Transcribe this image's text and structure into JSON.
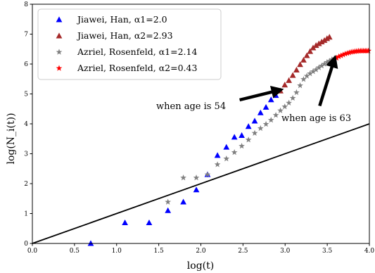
{
  "chart_data": {
    "type": "scatter",
    "xlabel": "log(t)",
    "ylabel": "log(N_i(t))",
    "xlim": [
      0.0,
      4.0
    ],
    "ylim": [
      0,
      8
    ],
    "xticks": [
      "0.0",
      "0.5",
      "1.0",
      "1.5",
      "2.0",
      "2.5",
      "3.0",
      "3.5",
      "4.0"
    ],
    "yticks": [
      "0",
      "1",
      "2",
      "3",
      "4",
      "5",
      "6",
      "7",
      "8"
    ],
    "legend_position": "top-left",
    "grid": false,
    "series": [
      {
        "name": "Jiawei, Han, α1=2.0",
        "marker": "triangle",
        "color": "#0000ff",
        "points": [
          [
            0.693,
            0.0
          ],
          [
            1.099,
            0.693
          ],
          [
            1.386,
            0.693
          ],
          [
            1.609,
            1.099
          ],
          [
            1.792,
            1.386
          ],
          [
            1.946,
            1.792
          ],
          [
            2.079,
            2.303
          ],
          [
            2.197,
            2.944
          ],
          [
            2.303,
            3.219
          ],
          [
            2.398,
            3.555
          ],
          [
            2.485,
            3.611
          ],
          [
            2.565,
            3.912
          ],
          [
            2.639,
            4.094
          ],
          [
            2.708,
            4.369
          ],
          [
            2.773,
            4.554
          ],
          [
            2.833,
            4.804
          ],
          [
            2.89,
            4.95
          ]
        ]
      },
      {
        "name": "Jiawei, Han, α2=2.93",
        "marker": "triangle",
        "color": "#a52a2a",
        "points": [
          [
            2.944,
            5.1
          ],
          [
            2.996,
            5.3
          ],
          [
            3.045,
            5.45
          ],
          [
            3.091,
            5.62
          ],
          [
            3.135,
            5.8
          ],
          [
            3.178,
            5.98
          ],
          [
            3.219,
            6.13
          ],
          [
            3.258,
            6.28
          ],
          [
            3.296,
            6.42
          ],
          [
            3.332,
            6.54
          ],
          [
            3.367,
            6.62
          ],
          [
            3.401,
            6.68
          ],
          [
            3.434,
            6.74
          ],
          [
            3.466,
            6.79
          ],
          [
            3.497,
            6.85
          ],
          [
            3.526,
            6.9
          ]
        ]
      },
      {
        "name": "Azriel, Rosenfeld, α1=2.14",
        "marker": "star",
        "color": "#808080",
        "points": [
          [
            1.609,
            1.386
          ],
          [
            1.792,
            2.197
          ],
          [
            1.946,
            2.197
          ],
          [
            2.079,
            2.303
          ],
          [
            2.197,
            2.639
          ],
          [
            2.303,
            2.833
          ],
          [
            2.398,
            3.045
          ],
          [
            2.485,
            3.258
          ],
          [
            2.565,
            3.466
          ],
          [
            2.639,
            3.689
          ],
          [
            2.708,
            3.85
          ],
          [
            2.773,
            3.989
          ],
          [
            2.833,
            4.127
          ],
          [
            2.89,
            4.29
          ],
          [
            2.944,
            4.443
          ],
          [
            2.996,
            4.575
          ],
          [
            3.045,
            4.7
          ],
          [
            3.091,
            4.86
          ],
          [
            3.135,
            5.05
          ],
          [
            3.178,
            5.28
          ],
          [
            3.219,
            5.49
          ],
          [
            3.258,
            5.6
          ],
          [
            3.296,
            5.68
          ],
          [
            3.332,
            5.75
          ],
          [
            3.367,
            5.81
          ],
          [
            3.401,
            5.88
          ],
          [
            3.434,
            5.94
          ],
          [
            3.466,
            6.0
          ],
          [
            3.497,
            6.06
          ],
          [
            3.526,
            6.1
          ],
          [
            3.555,
            6.15
          ],
          [
            3.584,
            6.19
          ]
        ]
      },
      {
        "name": "Azriel, Rosenfeld, α2=0.43",
        "marker": "star",
        "color": "#ff0000",
        "points": [
          [
            3.611,
            6.2
          ],
          [
            3.638,
            6.25
          ],
          [
            3.664,
            6.28
          ],
          [
            3.689,
            6.31
          ],
          [
            3.714,
            6.34
          ],
          [
            3.738,
            6.36
          ],
          [
            3.761,
            6.38
          ],
          [
            3.784,
            6.4
          ],
          [
            3.807,
            6.41
          ],
          [
            3.829,
            6.42
          ],
          [
            3.85,
            6.43
          ],
          [
            3.871,
            6.435
          ],
          [
            3.892,
            6.44
          ],
          [
            3.912,
            6.44
          ],
          [
            3.932,
            6.44
          ],
          [
            3.951,
            6.44
          ],
          [
            3.97,
            6.44
          ],
          [
            3.989,
            6.44
          ]
        ]
      }
    ],
    "reference_line": {
      "from": [
        0.0,
        0.0
      ],
      "to": [
        4.0,
        4.0
      ],
      "color": "#000000"
    },
    "annotations": [
      {
        "text": "when age is 54",
        "arrow_from": [
          2.46,
          4.8
        ],
        "arrow_to": [
          2.92,
          5.12
        ]
      },
      {
        "text": "when age is 63",
        "arrow_from": [
          3.41,
          4.6
        ],
        "arrow_to": [
          3.58,
          6.12
        ]
      }
    ]
  }
}
